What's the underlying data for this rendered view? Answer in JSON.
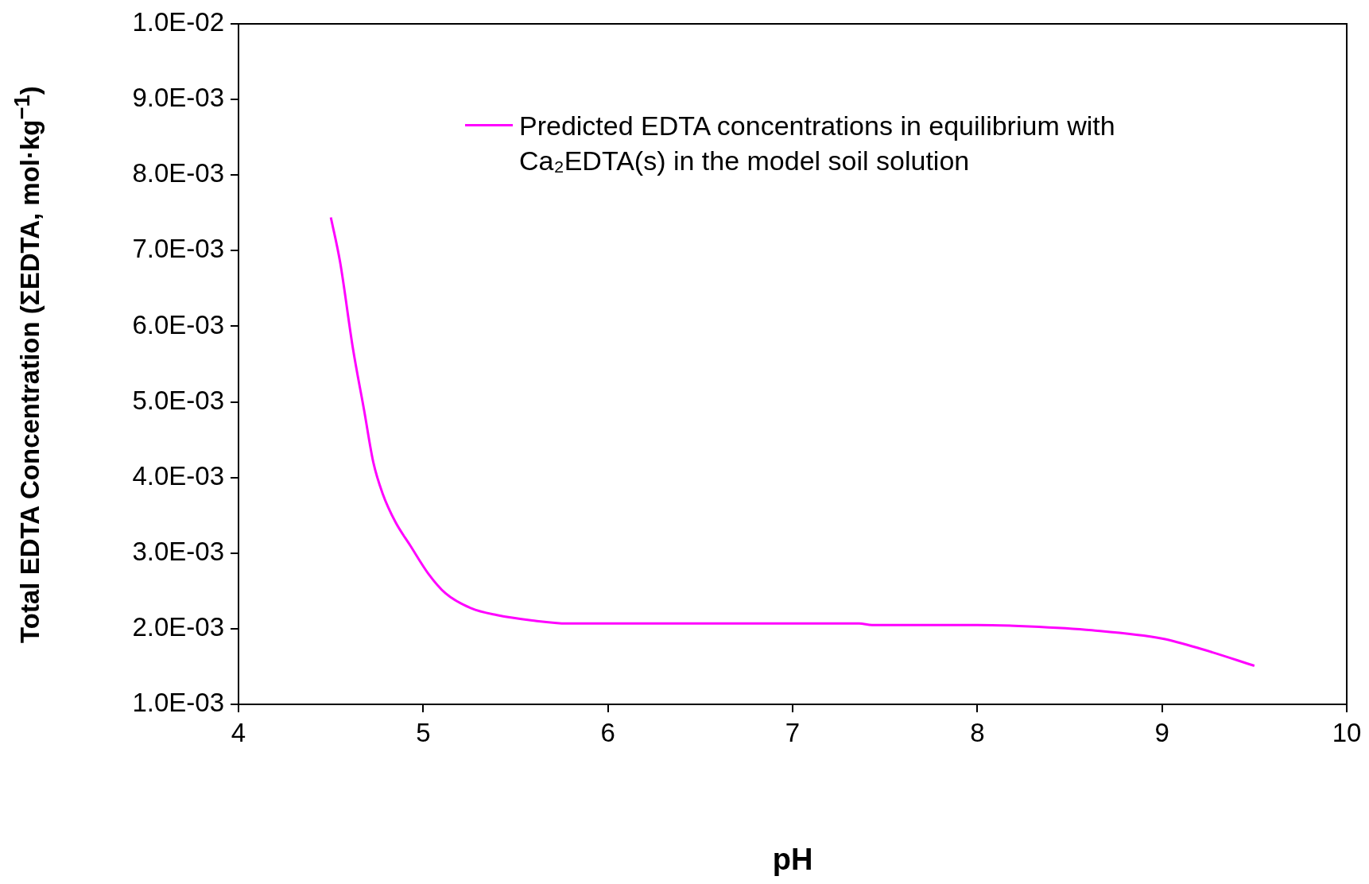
{
  "chart_data": {
    "type": "line",
    "xlabel": "pH",
    "ylabel": "Total EDTA Concentration (ΣEDTA, mol·kg$^{−1}$)",
    "xlim": [
      4,
      10
    ],
    "xticks": [
      4,
      5,
      6,
      7,
      8,
      9,
      10
    ],
    "ylim": [
      0.001,
      0.01
    ],
    "yticks": [
      {
        "value": 0.001,
        "label": "1.0E-03"
      },
      {
        "value": 0.002,
        "label": "2.0E-03"
      },
      {
        "value": 0.003,
        "label": "3.0E-03"
      },
      {
        "value": 0.004,
        "label": "4.0E-03"
      },
      {
        "value": 0.005,
        "label": "5.0E-03"
      },
      {
        "value": 0.006,
        "label": "6.0E-03"
      },
      {
        "value": 0.007,
        "label": "7.0E-03"
      },
      {
        "value": 0.008,
        "label": "8.0E-03"
      },
      {
        "value": 0.009,
        "label": "9.0E-03"
      },
      {
        "value": 0.01,
        "label": "1.0E-02"
      }
    ],
    "x": [
      4.5,
      4.55,
      4.62,
      4.68,
      4.73,
      4.78,
      4.85,
      4.93,
      5.03,
      5.12,
      5.26,
      5.4,
      5.59,
      5.78,
      6.49,
      7.36,
      7.43,
      8.0,
      8.28,
      8.62,
      9.0,
      9.23,
      9.5
    ],
    "series": [
      {
        "name": "Predicted EDTA concentrations in equilibrium with Ca₂EDTA(s) in the model soil solution",
        "color": "#ff00ff",
        "values": [
          0.00744,
          0.00685,
          0.0057,
          0.00489,
          0.0042,
          0.00379,
          0.00341,
          0.0031,
          0.00272,
          0.00247,
          0.00227,
          0.00218,
          0.00211,
          0.00207,
          0.00207,
          0.00207,
          0.00205,
          0.00205,
          0.00203,
          0.00198,
          0.00187,
          0.00172,
          0.00151
        ]
      }
    ],
    "legend": "top",
    "marker": "none"
  }
}
